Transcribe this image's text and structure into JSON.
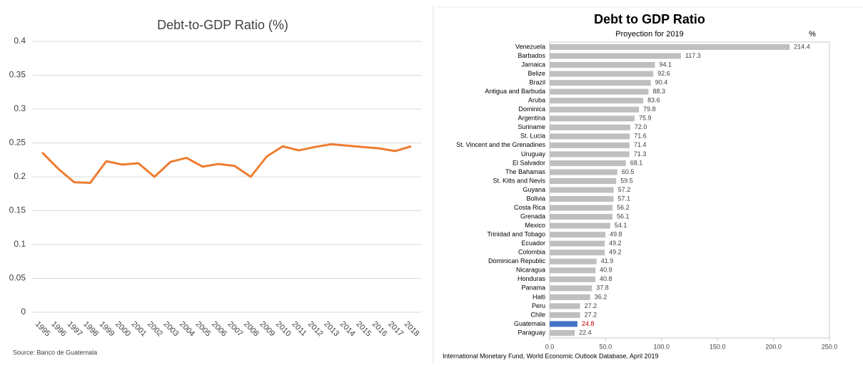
{
  "chart_data": [
    {
      "type": "line",
      "title": "Debt-to-GDP Ratio (%)",
      "source": "Source: Banco de Guatemala",
      "categories": [
        "1995",
        "1996",
        "1997",
        "1998",
        "1999",
        "2000",
        "2001",
        "2002",
        "2003",
        "2004",
        "2005",
        "2006",
        "2007",
        "2008",
        "2009",
        "2010",
        "2011",
        "2012",
        "2013",
        "2014",
        "2015",
        "2016",
        "2017",
        "2018"
      ],
      "values": [
        0.236,
        0.212,
        0.192,
        0.191,
        0.223,
        0.218,
        0.22,
        0.2,
        0.222,
        0.228,
        0.215,
        0.219,
        0.216,
        0.2,
        0.23,
        0.245,
        0.239,
        0.244,
        0.248,
        0.246,
        0.244,
        0.242,
        0.238,
        0.245
      ],
      "color": "#ed7d31",
      "ylim": [
        0,
        0.4
      ],
      "yticks": [
        0,
        0.05,
        0.1,
        0.15,
        0.2,
        0.25,
        0.3,
        0.35,
        0.4
      ],
      "grid": true
    },
    {
      "type": "hbar",
      "title": "Debt to GDP Ratio",
      "subtitle": "Proyection for 2019",
      "unit": "%",
      "source": "International Monetary Fund, World Economic Outlook Database, April 2019",
      "categories": [
        "Venezuela",
        "Barbados",
        "Jamaica",
        "Belize",
        "Brazil",
        "Antigua and Barbuda",
        "Aruba",
        "Dominica",
        "Argentina",
        "Suriname",
        "St. Lucia",
        "St. Vincent and the Grenadines",
        "Uruguay",
        "El Salvador",
        "The Bahamas",
        "St. Kitts and Nevis",
        "Guyana",
        "Bolivia",
        "Costa Rica",
        "Grenada",
        "Mexico",
        "Trinidad and Tobago",
        "Ecuador",
        "Colombia",
        "Dominican Republic",
        "Nicaragua",
        "Honduras",
        "Panama",
        "Haiti",
        "Peru",
        "Chile",
        "Guatemala",
        "Paraguay"
      ],
      "values": [
        214.4,
        117.3,
        94.1,
        92.6,
        90.4,
        88.3,
        83.6,
        79.8,
        75.9,
        72.0,
        71.6,
        71.4,
        71.3,
        68.1,
        60.5,
        59.5,
        57.2,
        57.1,
        56.2,
        56.1,
        54.1,
        49.8,
        49.2,
        49.2,
        41.9,
        40.9,
        40.8,
        37.8,
        36.2,
        27.2,
        27.2,
        24.8,
        22.4
      ],
      "value_labels": [
        "214.4",
        "117.3",
        "94.1",
        "92.6",
        "90.4",
        "88.3",
        "83.6",
        "79.8",
        "75.9",
        "72.0",
        "71.6",
        "71.4",
        "71.3",
        "68.1",
        "60.5",
        "59.5",
        "57.2",
        "57.1",
        "56.2",
        "56.1",
        "54.1",
        "49.8",
        "49.2",
        "49.2",
        "41.9",
        "40.9",
        "40.8",
        "37.8",
        "36.2",
        "27.2",
        "27.2",
        "24.8",
        "22.4"
      ],
      "colors": [
        "#bfbfbf",
        "#bfbfbf",
        "#bfbfbf",
        "#bfbfbf",
        "#bfbfbf",
        "#bfbfbf",
        "#bfbfbf",
        "#bfbfbf",
        "#bfbfbf",
        "#bfbfbf",
        "#bfbfbf",
        "#bfbfbf",
        "#bfbfbf",
        "#bfbfbf",
        "#bfbfbf",
        "#bfbfbf",
        "#bfbfbf",
        "#bfbfbf",
        "#bfbfbf",
        "#bfbfbf",
        "#bfbfbf",
        "#bfbfbf",
        "#bfbfbf",
        "#bfbfbf",
        "#bfbfbf",
        "#bfbfbf",
        "#bfbfbf",
        "#bfbfbf",
        "#bfbfbf",
        "#bfbfbf",
        "#bfbfbf",
        "#4472c4",
        "#bfbfbf"
      ],
      "value_label_colors": [
        "#404040",
        "#404040",
        "#404040",
        "#404040",
        "#404040",
        "#404040",
        "#404040",
        "#404040",
        "#404040",
        "#404040",
        "#404040",
        "#404040",
        "#404040",
        "#404040",
        "#404040",
        "#404040",
        "#404040",
        "#404040",
        "#404040",
        "#404040",
        "#404040",
        "#404040",
        "#404040",
        "#404040",
        "#404040",
        "#404040",
        "#404040",
        "#404040",
        "#404040",
        "#404040",
        "#404040",
        "#c00000",
        "#404040"
      ],
      "xlim": [
        0,
        250
      ],
      "xticks": [
        {
          "value": 0,
          "label": "0.0"
        },
        {
          "value": 50,
          "label": "50.0"
        },
        {
          "value": 100,
          "label": "100.0"
        },
        {
          "value": 150,
          "label": "150.0"
        },
        {
          "value": 200,
          "label": "200.0"
        },
        {
          "value": 250,
          "label": "250.0"
        }
      ]
    }
  ]
}
